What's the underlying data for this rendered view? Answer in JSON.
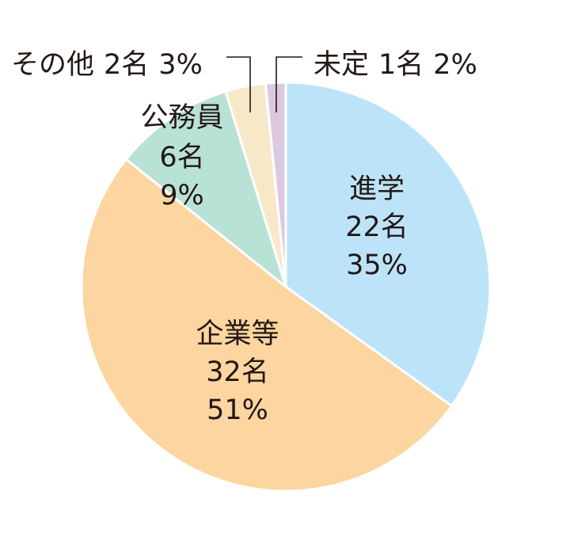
{
  "chart_data": {
    "type": "pie",
    "title": "",
    "start_angle_deg": 0,
    "direction": "clockwise",
    "slices": [
      {
        "name": "進学",
        "count": "22名",
        "percent": "35%",
        "value": 22,
        "color": "#bde3f9"
      },
      {
        "name": "企業等",
        "count": "32名",
        "percent": "51%",
        "value": 32,
        "color": "#fcd5a0"
      },
      {
        "name": "公務員",
        "count": "6名",
        "percent": "9%",
        "value": 6,
        "color": "#b9e2d7"
      },
      {
        "name": "その他",
        "count": "2名",
        "percent": "3%",
        "value": 2,
        "color": "#f7e8c8"
      },
      {
        "name": "未定",
        "count": "1名",
        "percent": "2%",
        "value": 1,
        "color": "#dcc9e1"
      }
    ]
  }
}
